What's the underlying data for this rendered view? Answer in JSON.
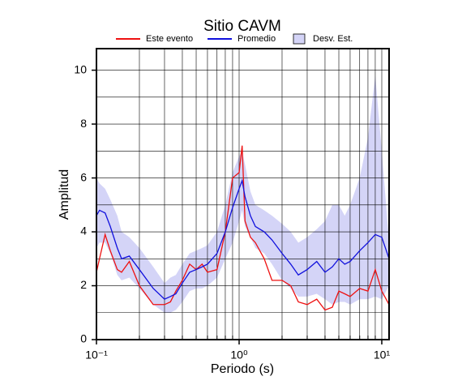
{
  "chart_data": {
    "type": "line",
    "title": "Sitio CAVM",
    "xlabel": "Periodo (s)",
    "ylabel": "Amplitud",
    "xscale": "log",
    "grid": true,
    "xlim": [
      0.1,
      11.25
    ],
    "ylim": [
      0,
      10.8
    ],
    "xticks": [
      {
        "value": 0.1,
        "label": "10⁻¹"
      },
      {
        "value": 1,
        "label": "10⁰"
      },
      {
        "value": 10,
        "label": "10¹"
      }
    ],
    "xminorticks": [
      0.2,
      0.3,
      0.4,
      0.5,
      0.6,
      0.7,
      0.8,
      0.9,
      2,
      3,
      4,
      5,
      6,
      7,
      8,
      9
    ],
    "yticks": [
      0,
      2,
      4,
      6,
      8,
      10
    ],
    "yminorticks": [
      1,
      3,
      5,
      7,
      9
    ],
    "x": [
      0.1,
      0.105,
      0.115,
      0.125,
      0.14,
      0.15,
      0.17,
      0.2,
      0.25,
      0.3,
      0.33,
      0.36,
      0.4,
      0.45,
      0.5,
      0.55,
      0.6,
      0.7,
      0.8,
      0.9,
      1.0,
      1.05,
      1.1,
      1.2,
      1.3,
      1.5,
      1.7,
      2.0,
      2.3,
      2.6,
      3.0,
      3.5,
      4.0,
      4.5,
      5.0,
      5.5,
      6.0,
      7.0,
      8.0,
      9.0,
      10,
      11.25
    ],
    "band": {
      "name": "Desv. Est.",
      "color": "#d4d4f7",
      "upper": [
        6.0,
        5.8,
        5.6,
        5.2,
        4.6,
        4.0,
        3.8,
        3.4,
        2.7,
        2.1,
        2.3,
        2.4,
        2.8,
        3.2,
        3.3,
        3.4,
        3.5,
        4.0,
        5.0,
        6.2,
        6.8,
        7.0,
        6.5,
        5.5,
        5.0,
        4.8,
        4.6,
        4.3,
        4.0,
        3.6,
        3.8,
        4.1,
        4.4,
        5.0,
        5.0,
        4.6,
        5.0,
        6.0,
        7.5,
        9.8,
        7.0,
        3.6
      ],
      "lower": [
        3.4,
        3.6,
        3.6,
        3.2,
        2.4,
        2.2,
        2.3,
        1.9,
        1.3,
        1.0,
        1.0,
        1.1,
        1.4,
        1.8,
        1.9,
        1.9,
        2.0,
        2.3,
        3.0,
        3.6,
        4.4,
        4.8,
        4.2,
        3.8,
        3.4,
        3.2,
        2.8,
        2.2,
        1.9,
        1.6,
        1.6,
        1.7,
        1.5,
        1.3,
        1.4,
        1.4,
        1.3,
        1.5,
        1.5,
        1.6,
        1.5,
        2.0
      ]
    },
    "series": [
      {
        "name": "Este evento",
        "color": "#ee1111",
        "values": [
          2.5,
          3.0,
          3.9,
          3.3,
          2.6,
          2.5,
          2.9,
          2.0,
          1.3,
          1.3,
          1.4,
          1.8,
          2.2,
          2.8,
          2.6,
          2.8,
          2.5,
          2.6,
          4.0,
          6.0,
          6.2,
          7.2,
          4.4,
          3.8,
          3.6,
          3.0,
          2.2,
          2.2,
          2.0,
          1.4,
          1.3,
          1.5,
          1.1,
          1.2,
          1.8,
          1.7,
          1.6,
          1.9,
          1.8,
          2.6,
          1.8,
          1.3
        ]
      },
      {
        "name": "Promedio",
        "color": "#1111dd",
        "values": [
          4.6,
          4.8,
          4.7,
          4.2,
          3.4,
          3.0,
          3.1,
          2.6,
          1.9,
          1.5,
          1.6,
          1.7,
          2.1,
          2.5,
          2.6,
          2.7,
          2.8,
          3.2,
          4.0,
          4.9,
          5.6,
          5.9,
          5.3,
          4.6,
          4.2,
          4.0,
          3.7,
          3.2,
          2.8,
          2.4,
          2.6,
          2.9,
          2.5,
          2.7,
          3.0,
          2.8,
          2.9,
          3.3,
          3.6,
          3.9,
          3.8,
          3.0
        ]
      }
    ]
  }
}
